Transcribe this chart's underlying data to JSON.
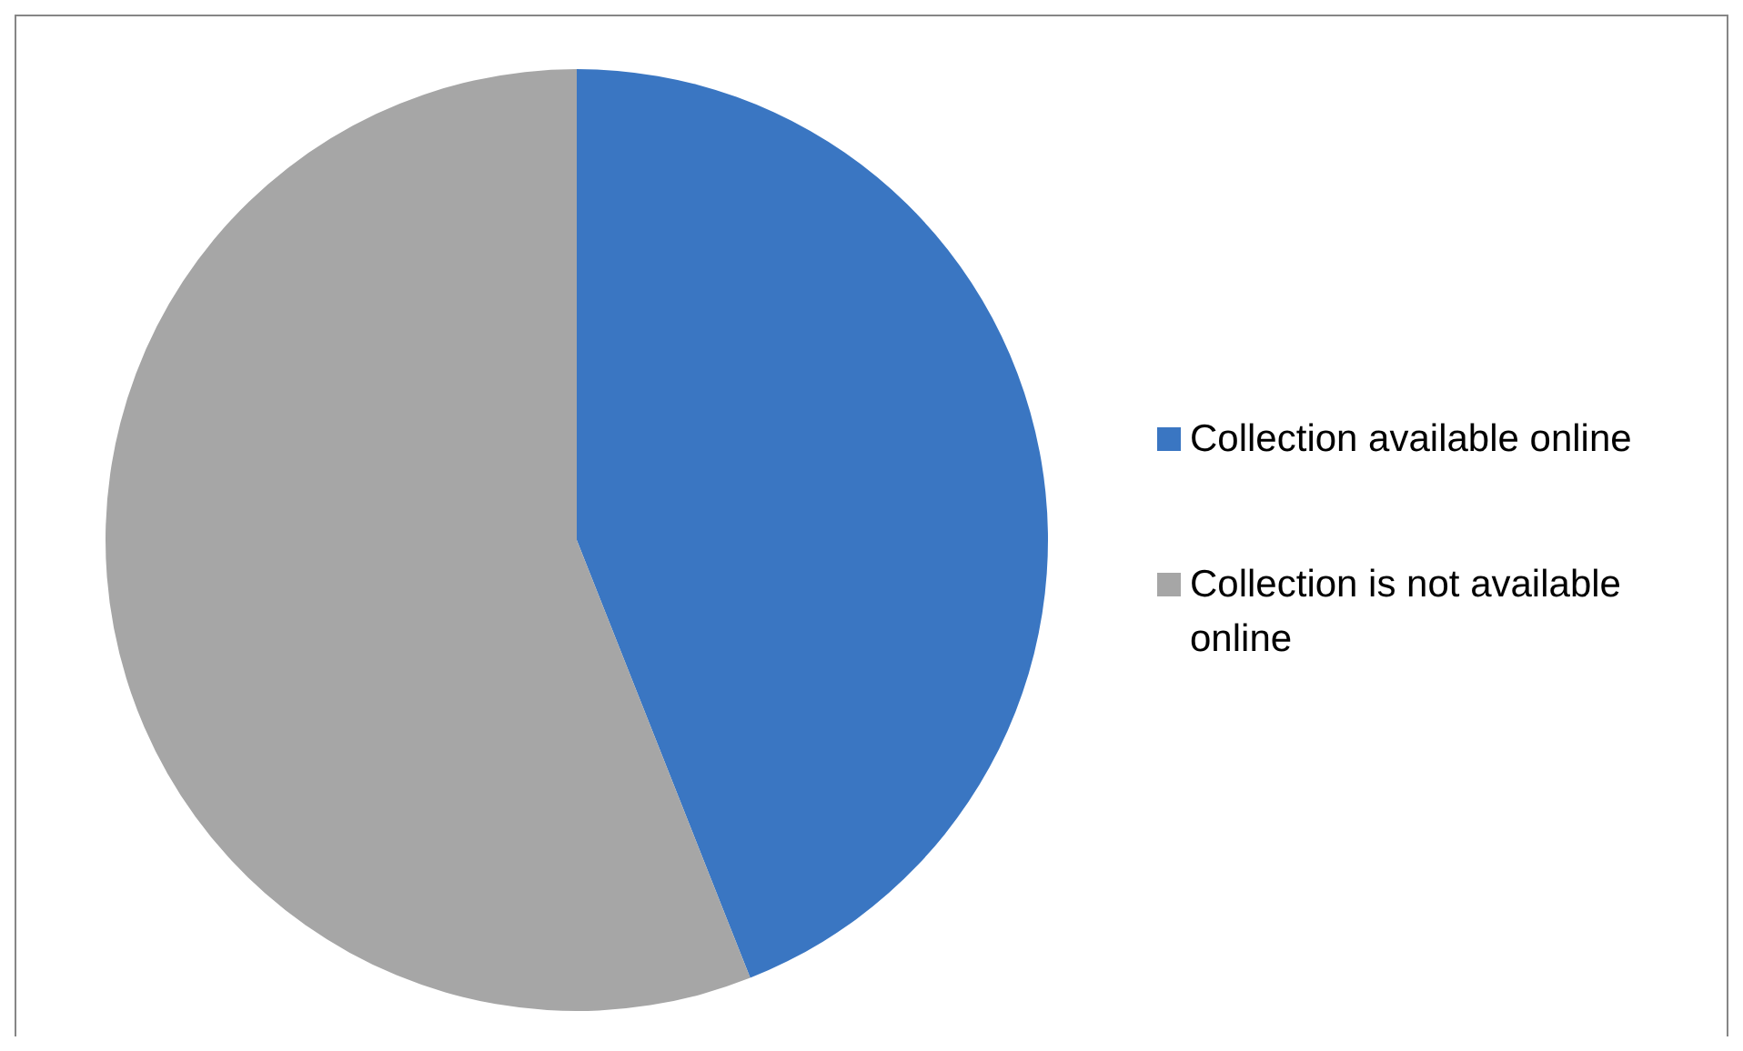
{
  "chart_data": {
    "type": "pie",
    "categories": [
      "Collection available online",
      "Collection is not available online"
    ],
    "values": [
      44,
      56
    ],
    "colors": [
      "#3a76c2",
      "#a6a6a6"
    ],
    "legend": "right"
  }
}
